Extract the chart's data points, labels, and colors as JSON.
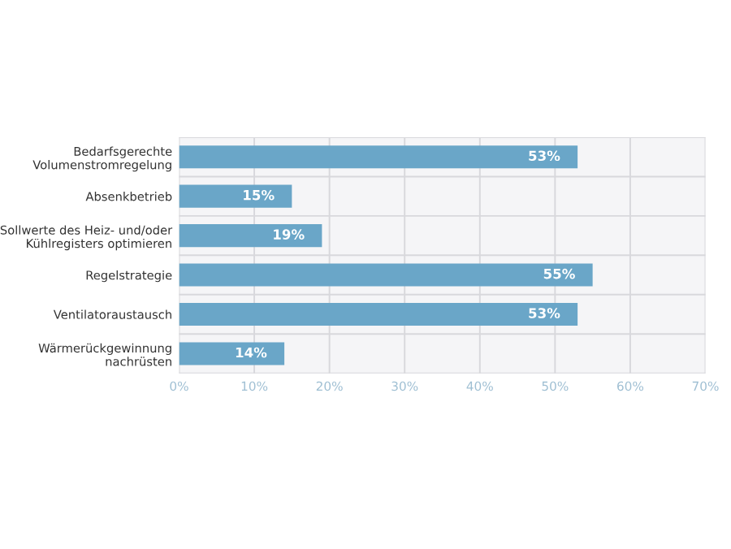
{
  "chart_data": {
    "type": "bar",
    "orientation": "horizontal",
    "categories": [
      "Bedarfsgerechte\nVolumenstromregelung",
      "Absenkbetrieb",
      "Sollwerte des Heiz- und/oder\nKühlregisters optimieren",
      "Regelstrategie",
      "Ventilatoraustausch",
      "Wärmerückgewinnung\nnachrüsten"
    ],
    "values": [
      53,
      15,
      19,
      55,
      53,
      14
    ],
    "color": "#6aa6c8",
    "xlim": [
      0,
      70
    ],
    "xticks": [
      {
        "value": 0,
        "label": "0%"
      },
      {
        "value": 10,
        "label": "10%"
      },
      {
        "value": 20,
        "label": "20%"
      },
      {
        "value": 30,
        "label": "30%"
      },
      {
        "value": 40,
        "label": "40%"
      },
      {
        "value": 50,
        "label": "50%"
      },
      {
        "value": 60,
        "label": "60%"
      },
      {
        "value": 70,
        "label": "70%"
      }
    ],
    "value_labels": [
      "53%",
      "15%",
      "19%",
      "55%",
      "53%",
      "14%"
    ],
    "grid": true
  }
}
